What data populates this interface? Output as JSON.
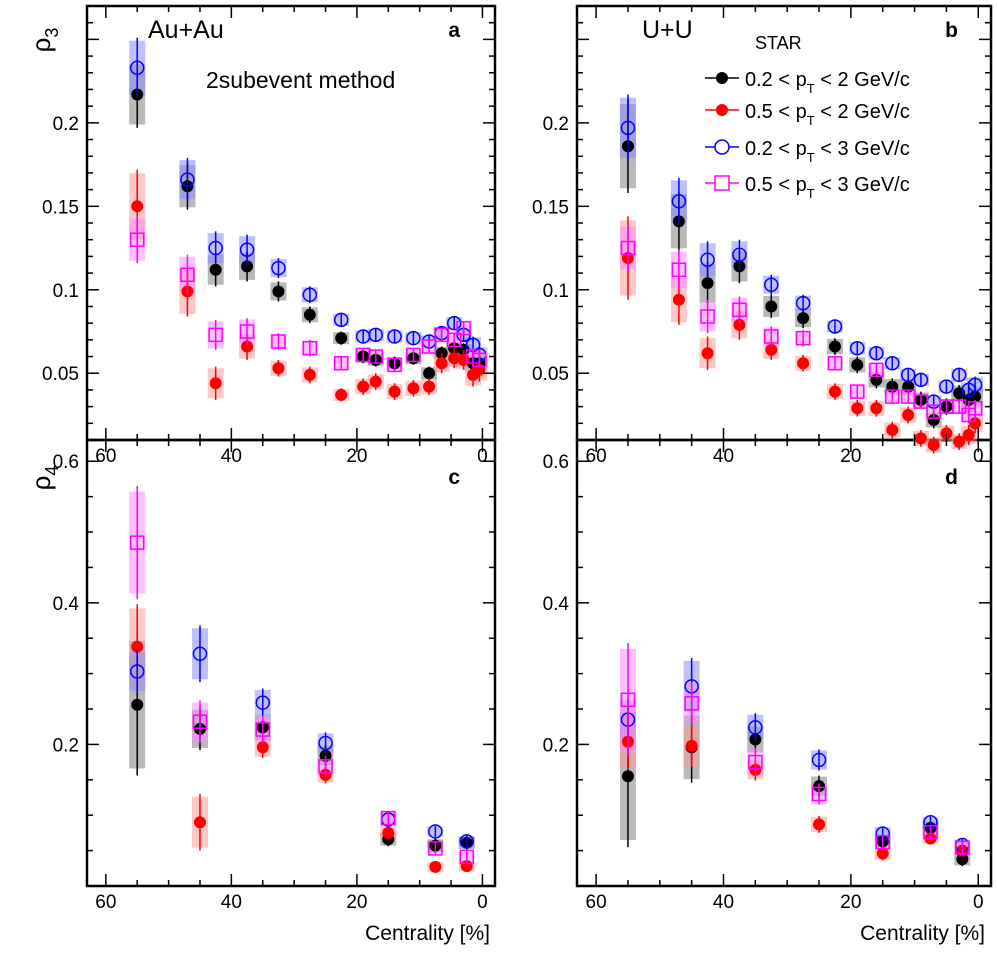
{
  "chart_data": [
    {
      "panel": "a",
      "type": "scatter",
      "system": "Au+Au",
      "method": "2subevent method",
      "ylabel": "ρ",
      "ylabel_sub": "3",
      "xlabel": "",
      "xlim": [
        63,
        -2
      ],
      "ylim": [
        0.01,
        0.27
      ],
      "xticks": [
        "60",
        "40",
        "20",
        "0"
      ],
      "yticks": [
        "0.05",
        "0.1",
        "0.15",
        "0.2"
      ],
      "series": [
        {
          "name": "black",
          "x": [
            55,
            47,
            42.5,
            37.5,
            32.5,
            27.5,
            22.5,
            19,
            17,
            14,
            11,
            8.5,
            6.5,
            4.5,
            3,
            1.5,
            0.5
          ],
          "y": [
            0.217,
            0.162,
            0.112,
            0.114,
            0.099,
            0.085,
            0.071,
            0.06,
            0.058,
            0.056,
            0.059,
            0.05,
            0.062,
            0.065,
            0.064,
            0.056,
            0.056
          ],
          "err": [
            0.02,
            0.014,
            0.01,
            0.009,
            0.006,
            0.005,
            0.004,
            0.004,
            0.004,
            0.004,
            0.004,
            0.004,
            0.004,
            0.004,
            0.004,
            0.005,
            0.005
          ]
        },
        {
          "name": "red",
          "x": [
            55,
            47,
            42.5,
            37.5,
            32.5,
            27.5,
            22.5,
            19,
            17,
            14,
            11,
            8.5,
            6.5,
            4.5,
            3,
            1.5,
            0.5
          ],
          "y": [
            0.15,
            0.099,
            0.044,
            0.066,
            0.053,
            0.049,
            0.037,
            0.042,
            0.045,
            0.039,
            0.041,
            0.042,
            0.056,
            0.059,
            0.058,
            0.049,
            0.052
          ],
          "err": [
            0.022,
            0.015,
            0.01,
            0.008,
            0.005,
            0.005,
            0.004,
            0.005,
            0.005,
            0.005,
            0.005,
            0.005,
            0.006,
            0.006,
            0.006,
            0.007,
            0.007
          ]
        },
        {
          "name": "blue",
          "x": [
            55,
            47,
            42.5,
            37.5,
            32.5,
            27.5,
            22.5,
            19,
            17,
            14,
            11,
            8.5,
            6.5,
            4.5,
            3,
            1.5,
            0.5
          ],
          "y": [
            0.233,
            0.166,
            0.125,
            0.124,
            0.113,
            0.097,
            0.082,
            0.072,
            0.073,
            0.072,
            0.071,
            0.069,
            0.074,
            0.08,
            0.073,
            0.067,
            0.061
          ],
          "err": [
            0.018,
            0.013,
            0.01,
            0.009,
            0.006,
            0.005,
            0.004,
            0.004,
            0.004,
            0.004,
            0.004,
            0.004,
            0.004,
            0.004,
            0.004,
            0.005,
            0.005
          ]
        },
        {
          "name": "magenta",
          "x": [
            55,
            47,
            42.5,
            37.5,
            32.5,
            27.5,
            22.5,
            19,
            17,
            14,
            11,
            8.5,
            6.5,
            4.5,
            3,
            1.5,
            0.5
          ],
          "y": [
            0.13,
            0.109,
            0.073,
            0.075,
            0.069,
            0.065,
            0.056,
            0.061,
            0.06,
            0.055,
            0.061,
            0.066,
            0.073,
            0.07,
            0.077,
            0.06,
            0.058
          ],
          "err": [
            0.014,
            0.012,
            0.009,
            0.008,
            0.005,
            0.005,
            0.004,
            0.004,
            0.004,
            0.004,
            0.004,
            0.004,
            0.004,
            0.004,
            0.004,
            0.005,
            0.005
          ]
        }
      ]
    },
    {
      "panel": "b",
      "type": "scatter",
      "system": "U+U",
      "experiment": "STAR",
      "ylabel": "",
      "xlabel": "",
      "xlim": [
        63,
        -2
      ],
      "ylim": [
        0.01,
        0.27
      ],
      "xticks": [
        "60",
        "40",
        "20",
        "0"
      ],
      "yticks": [
        "0.05",
        "0.1",
        "0.15",
        "0.2"
      ],
      "series": [
        {
          "name": "black",
          "x": [
            55,
            47,
            42.5,
            37.5,
            32.5,
            27.5,
            22.5,
            19,
            16,
            13.5,
            11,
            9,
            7,
            5,
            3,
            1.5,
            0.5
          ],
          "y": [
            0.186,
            0.141,
            0.104,
            0.114,
            0.09,
            0.083,
            0.066,
            0.055,
            0.046,
            0.042,
            0.042,
            0.034,
            0.022,
            0.03,
            0.038,
            0.034,
            0.036
          ],
          "err": [
            0.028,
            0.018,
            0.013,
            0.01,
            0.007,
            0.006,
            0.005,
            0.005,
            0.005,
            0.005,
            0.005,
            0.005,
            0.005,
            0.005,
            0.005,
            0.006,
            0.006
          ]
        },
        {
          "name": "red",
          "x": [
            55,
            47,
            42.5,
            37.5,
            32.5,
            27.5,
            22.5,
            19,
            16,
            13.5,
            11,
            9,
            7,
            5,
            3,
            1.5,
            0.5
          ],
          "y": [
            0.119,
            0.094,
            0.062,
            0.079,
            0.064,
            0.056,
            0.039,
            0.029,
            0.029,
            0.016,
            0.025,
            0.011,
            0.007,
            0.014,
            0.009,
            0.013,
            0.02
          ],
          "err": [
            0.025,
            0.015,
            0.01,
            0.009,
            0.006,
            0.005,
            0.005,
            0.005,
            0.005,
            0.005,
            0.005,
            0.005,
            0.005,
            0.005,
            0.005,
            0.006,
            0.006
          ]
        },
        {
          "name": "blue",
          "x": [
            55,
            47,
            42.5,
            37.5,
            32.5,
            27.5,
            22.5,
            19,
            16,
            13.5,
            11,
            9,
            7,
            5,
            3,
            1.5,
            0.5
          ],
          "y": [
            0.197,
            0.153,
            0.118,
            0.121,
            0.103,
            0.092,
            0.078,
            0.065,
            0.062,
            0.056,
            0.049,
            0.046,
            0.033,
            0.042,
            0.049,
            0.04,
            0.043
          ],
          "err": [
            0.02,
            0.014,
            0.011,
            0.009,
            0.006,
            0.005,
            0.004,
            0.004,
            0.004,
            0.004,
            0.004,
            0.004,
            0.004,
            0.004,
            0.004,
            0.005,
            0.005
          ]
        },
        {
          "name": "magenta",
          "x": [
            55,
            47,
            42.5,
            37.5,
            32.5,
            27.5,
            22.5,
            19,
            16,
            13.5,
            11,
            9,
            7,
            5,
            3,
            1.5,
            0.5
          ],
          "y": [
            0.125,
            0.112,
            0.084,
            0.088,
            0.072,
            0.071,
            0.056,
            0.039,
            0.052,
            0.036,
            0.036,
            0.033,
            0.027,
            0.03,
            0.03,
            0.025,
            0.029
          ],
          "err": [
            0.014,
            0.012,
            0.01,
            0.008,
            0.006,
            0.005,
            0.004,
            0.004,
            0.004,
            0.004,
            0.004,
            0.004,
            0.004,
            0.004,
            0.004,
            0.005,
            0.005
          ]
        }
      ]
    },
    {
      "panel": "c",
      "type": "scatter",
      "ylabel": "ρ",
      "ylabel_sub": "4",
      "xlabel": "Centrality [%]",
      "xlim": [
        63,
        -2
      ],
      "ylim": [
        0.0,
        0.63
      ],
      "xticks": [
        "60",
        "40",
        "20",
        "0"
      ],
      "yticks": [
        "0.2",
        "0.4",
        "0.6"
      ],
      "series": [
        {
          "name": "black",
          "x": [
            55,
            45,
            35,
            25,
            15,
            7.5,
            2.5
          ],
          "y": [
            0.256,
            0.222,
            0.224,
            0.184,
            0.066,
            0.057,
            0.061
          ],
          "err": [
            0.1,
            0.03,
            0.02,
            0.015,
            0.01,
            0.01,
            0.01
          ]
        },
        {
          "name": "red",
          "x": [
            55,
            45,
            35,
            25,
            15,
            7.5,
            2.5
          ],
          "y": [
            0.338,
            0.09,
            0.196,
            0.157,
            0.075,
            0.027,
            0.028
          ],
          "err": [
            0.06,
            0.04,
            0.015,
            0.012,
            0.01,
            0.008,
            0.008
          ]
        },
        {
          "name": "blue",
          "x": [
            55,
            45,
            35,
            25,
            15,
            7.5,
            2.5
          ],
          "y": [
            0.303,
            0.328,
            0.259,
            0.202,
            0.094,
            0.077,
            0.063
          ],
          "err": [
            0.03,
            0.04,
            0.02,
            0.015,
            0.01,
            0.008,
            0.008
          ]
        },
        {
          "name": "magenta",
          "x": [
            55,
            45,
            35,
            25,
            15,
            7.5,
            2.5
          ],
          "y": [
            0.485,
            0.232,
            0.221,
            0.169,
            0.096,
            0.053,
            0.041
          ],
          "err": [
            0.08,
            0.03,
            0.02,
            0.015,
            0.01,
            0.008,
            0.008
          ]
        }
      ]
    },
    {
      "panel": "d",
      "type": "scatter",
      "ylabel": "",
      "xlabel": "Centrality [%]",
      "xlim": [
        63,
        -2
      ],
      "ylim": [
        0.0,
        0.63
      ],
      "xticks": [
        "60",
        "40",
        "20",
        "0"
      ],
      "yticks": [
        "0.2",
        "0.4",
        "0.6"
      ],
      "series": [
        {
          "name": "black",
          "x": [
            55,
            45,
            35,
            25,
            15,
            7.5,
            2.5
          ],
          "y": [
            0.155,
            0.196,
            0.207,
            0.141,
            0.063,
            0.082,
            0.038
          ],
          "err": [
            0.1,
            0.05,
            0.02,
            0.015,
            0.01,
            0.01,
            0.01
          ]
        },
        {
          "name": "red",
          "x": [
            55,
            45,
            35,
            25,
            15,
            7.5,
            2.5
          ],
          "y": [
            0.204,
            0.198,
            0.164,
            0.087,
            0.046,
            0.067,
            0.05
          ],
          "err": [
            0.04,
            0.03,
            0.015,
            0.012,
            0.01,
            0.008,
            0.008
          ]
        },
        {
          "name": "blue",
          "x": [
            55,
            45,
            35,
            25,
            15,
            7.5,
            2.5
          ],
          "y": [
            0.235,
            0.282,
            0.224,
            0.178,
            0.074,
            0.09,
            0.058
          ],
          "err": [
            0.03,
            0.04,
            0.02,
            0.015,
            0.01,
            0.008,
            0.008
          ]
        },
        {
          "name": "magenta",
          "x": [
            55,
            45,
            35,
            25,
            15,
            7.5,
            2.5
          ],
          "y": [
            0.263,
            0.258,
            0.175,
            0.13,
            0.062,
            0.076,
            0.054
          ],
          "err": [
            0.08,
            0.03,
            0.02,
            0.015,
            0.01,
            0.008,
            0.008
          ]
        }
      ]
    }
  ],
  "legend": [
    {
      "series": "black",
      "label_pre": "0.2 < p",
      "label_sub": "T",
      "label_post": " < 2 GeV/c",
      "marker": "filled-circle",
      "color": "#000000",
      "sys_color": "#808080"
    },
    {
      "series": "red",
      "label_pre": "0.5 < p",
      "label_sub": "T",
      "label_post": " < 2 GeV/c",
      "marker": "filled-circle",
      "color": "#ff0000",
      "sys_color": "#ff9a9a"
    },
    {
      "series": "blue",
      "label_pre": "0.2 < p",
      "label_sub": "T",
      "label_post": " < 3 GeV/c",
      "marker": "open-circle",
      "color": "#0000ff",
      "sys_color": "#8c8cff"
    },
    {
      "series": "magenta",
      "label_pre": "0.5 < p",
      "label_sub": "T",
      "label_post": " < 3 GeV/c",
      "marker": "open-square",
      "color": "#ff00ff",
      "sys_color": "#ff8cff"
    }
  ]
}
